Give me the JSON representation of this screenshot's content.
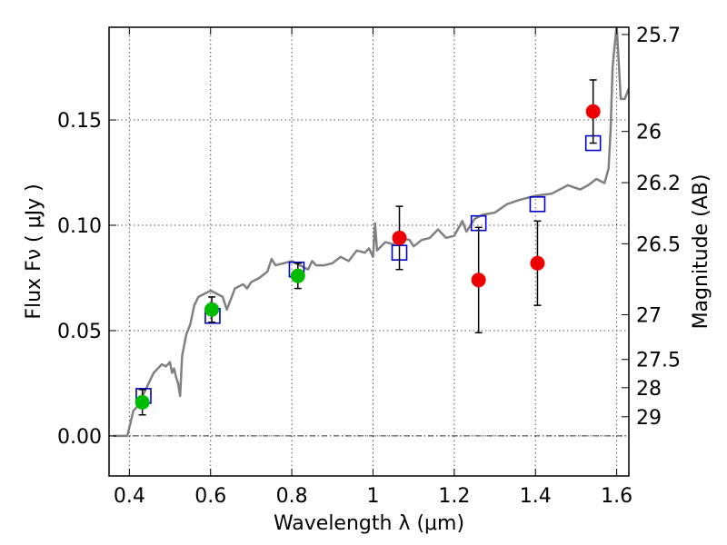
{
  "chart_data": {
    "type": "scatter",
    "title": "",
    "xlabel": "Wavelength  λ (μm)",
    "ylabel": "Flux  Fν  ( μJy )",
    "y2label": "Magnitude (AB)",
    "xlim": [
      0.35,
      1.63
    ],
    "ylim": [
      -0.019,
      0.194
    ],
    "grid": true,
    "legend": "none",
    "x_ticks": [
      {
        "value": 0.4,
        "label": "0.4"
      },
      {
        "value": 0.6,
        "label": "0.6"
      },
      {
        "value": 0.8,
        "label": "0.8"
      },
      {
        "value": 1.0,
        "label": "1"
      },
      {
        "value": 1.2,
        "label": "1.2"
      },
      {
        "value": 1.4,
        "label": "1.4"
      },
      {
        "value": 1.6,
        "label": "1.6"
      }
    ],
    "y_ticks": [
      {
        "value": 0.0,
        "label": "0.00"
      },
      {
        "value": 0.05,
        "label": "0.05"
      },
      {
        "value": 0.1,
        "label": "0.10"
      },
      {
        "value": 0.15,
        "label": "0.15"
      }
    ],
    "y2_ticks": [
      {
        "mag": 25.7,
        "label": "25.7"
      },
      {
        "mag": 26,
        "label": "26"
      },
      {
        "mag": 26.2,
        "label": "26.2"
      },
      {
        "mag": 26.5,
        "label": "26.5"
      },
      {
        "mag": 27,
        "label": "27"
      },
      {
        "mag": 27.5,
        "label": "27.5"
      },
      {
        "mag": 28,
        "label": "28"
      },
      {
        "mag": 29,
        "label": "29"
      }
    ],
    "zero_line": 0.0,
    "colors": {
      "template": "#808080",
      "model_squares": "#0000cc",
      "green_points": "#00bb00",
      "red_points": "#ee0000",
      "errorbars": "#000000",
      "grid": "#555555"
    },
    "series": [
      {
        "kind": "template-spectrum",
        "x": [
          0.36,
          0.395,
          0.41,
          0.425,
          0.435,
          0.445,
          0.455,
          0.46,
          0.47,
          0.475,
          0.48,
          0.49,
          0.5,
          0.505,
          0.51,
          0.515,
          0.52,
          0.525,
          0.53,
          0.54,
          0.55,
          0.56,
          0.57,
          0.58,
          0.59,
          0.6,
          0.61,
          0.62,
          0.63,
          0.64,
          0.65,
          0.66,
          0.67,
          0.68,
          0.69,
          0.7,
          0.72,
          0.74,
          0.75,
          0.76,
          0.78,
          0.8,
          0.82,
          0.84,
          0.85,
          0.86,
          0.88,
          0.9,
          0.92,
          0.94,
          0.96,
          0.98,
          0.99,
          1.0,
          1.005,
          1.01,
          1.03,
          1.05,
          1.07,
          1.09,
          1.1,
          1.12,
          1.14,
          1.16,
          1.18,
          1.2,
          1.22,
          1.23,
          1.25,
          1.27,
          1.3,
          1.33,
          1.36,
          1.4,
          1.44,
          1.48,
          1.51,
          1.53,
          1.55,
          1.57,
          1.58,
          1.585,
          1.59,
          1.6,
          1.61,
          1.62,
          1.63
        ],
        "y": [
          0.0,
          0.0,
          0.012,
          0.015,
          0.02,
          0.024,
          0.028,
          0.03,
          0.032,
          0.033,
          0.034,
          0.033,
          0.035,
          0.03,
          0.032,
          0.028,
          0.025,
          0.019,
          0.038,
          0.048,
          0.053,
          0.062,
          0.066,
          0.067,
          0.068,
          0.069,
          0.068,
          0.067,
          0.066,
          0.06,
          0.065,
          0.07,
          0.071,
          0.072,
          0.07,
          0.073,
          0.075,
          0.078,
          0.084,
          0.081,
          0.082,
          0.083,
          0.081,
          0.079,
          0.083,
          0.081,
          0.081,
          0.082,
          0.085,
          0.083,
          0.088,
          0.087,
          0.089,
          0.085,
          0.101,
          0.088,
          0.092,
          0.091,
          0.094,
          0.093,
          0.09,
          0.093,
          0.094,
          0.098,
          0.094,
          0.095,
          0.102,
          0.097,
          0.103,
          0.105,
          0.106,
          0.11,
          0.112,
          0.114,
          0.115,
          0.119,
          0.117,
          0.119,
          0.122,
          0.12,
          0.127,
          0.145,
          0.175,
          0.195,
          0.16,
          0.16,
          0.165
        ]
      },
      {
        "kind": "model-photometry",
        "marker": "open-square",
        "x": [
          0.435,
          0.605,
          0.812,
          1.065,
          1.26,
          1.405,
          1.542
        ],
        "y": [
          0.019,
          0.057,
          0.079,
          0.087,
          0.101,
          0.11,
          0.139
        ]
      },
      {
        "kind": "observed-photometry",
        "marker": "filled-circle",
        "color_key": "green_points",
        "x": [
          0.432,
          0.603,
          0.815
        ],
        "y": [
          0.016,
          0.06,
          0.076
        ],
        "yerr": [
          0.006,
          0.006,
          0.006
        ]
      },
      {
        "kind": "observed-photometry",
        "marker": "filled-circle",
        "color_key": "red_points",
        "x": [
          1.065,
          1.26,
          1.405,
          1.542
        ],
        "y": [
          0.094,
          0.074,
          0.082,
          0.154
        ],
        "yerr": [
          0.015,
          0.025,
          0.02,
          0.015
        ]
      }
    ]
  }
}
